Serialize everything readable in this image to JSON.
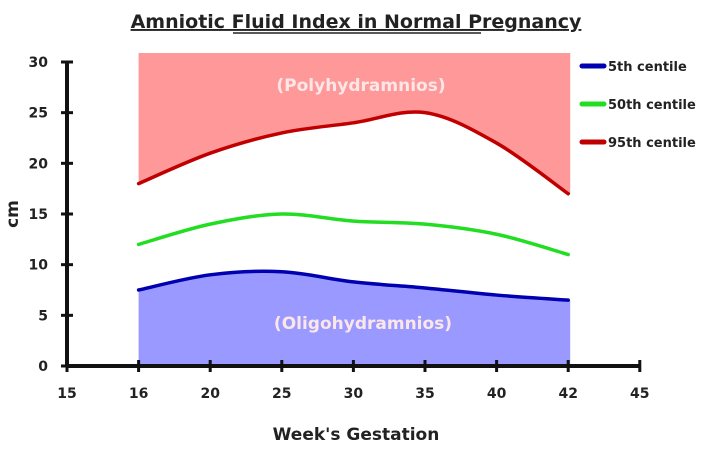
{
  "chart_data": {
    "type": "line",
    "title": "Amniotic Fluid Index in Normal Pregnancy",
    "xlabel": "Week's Gestation",
    "ylabel": "cm",
    "x_ticks": [
      "15",
      "16",
      "20",
      "25",
      "30",
      "35",
      "40",
      "42",
      "45"
    ],
    "y_ticks": [
      "0",
      "5",
      "10",
      "15",
      "20",
      "25",
      "30"
    ],
    "ylim": [
      0,
      30
    ],
    "grid": false,
    "legend_position": "right",
    "x": [
      16,
      20,
      25,
      30,
      35,
      40,
      42
    ],
    "series": [
      {
        "name": "5th centile",
        "color": "#0000b0",
        "values": [
          7.5,
          9.0,
          9.3,
          8.3,
          7.7,
          7.0,
          6.5
        ]
      },
      {
        "name": "50th centile",
        "color": "#22dd22",
        "values": [
          12,
          14,
          15,
          14.3,
          14,
          13,
          11
        ]
      },
      {
        "name": "95th centile",
        "color": "#c00000",
        "values": [
          18,
          21,
          23,
          24,
          25,
          22,
          17
        ]
      }
    ],
    "regions": [
      {
        "label": "(Polyhydramnios)",
        "description": "above 95th centile",
        "fill": "#ff9999"
      },
      {
        "label": "(Oligohydramnios)",
        "description": "below 5th centile",
        "fill": "#9999ff"
      }
    ]
  },
  "legend": {
    "items": [
      {
        "label": "5th centile",
        "color": "#0000b0"
      },
      {
        "label": "50th centile",
        "color": "#22dd22"
      },
      {
        "label": "95th centile",
        "color": "#c00000"
      }
    ]
  }
}
